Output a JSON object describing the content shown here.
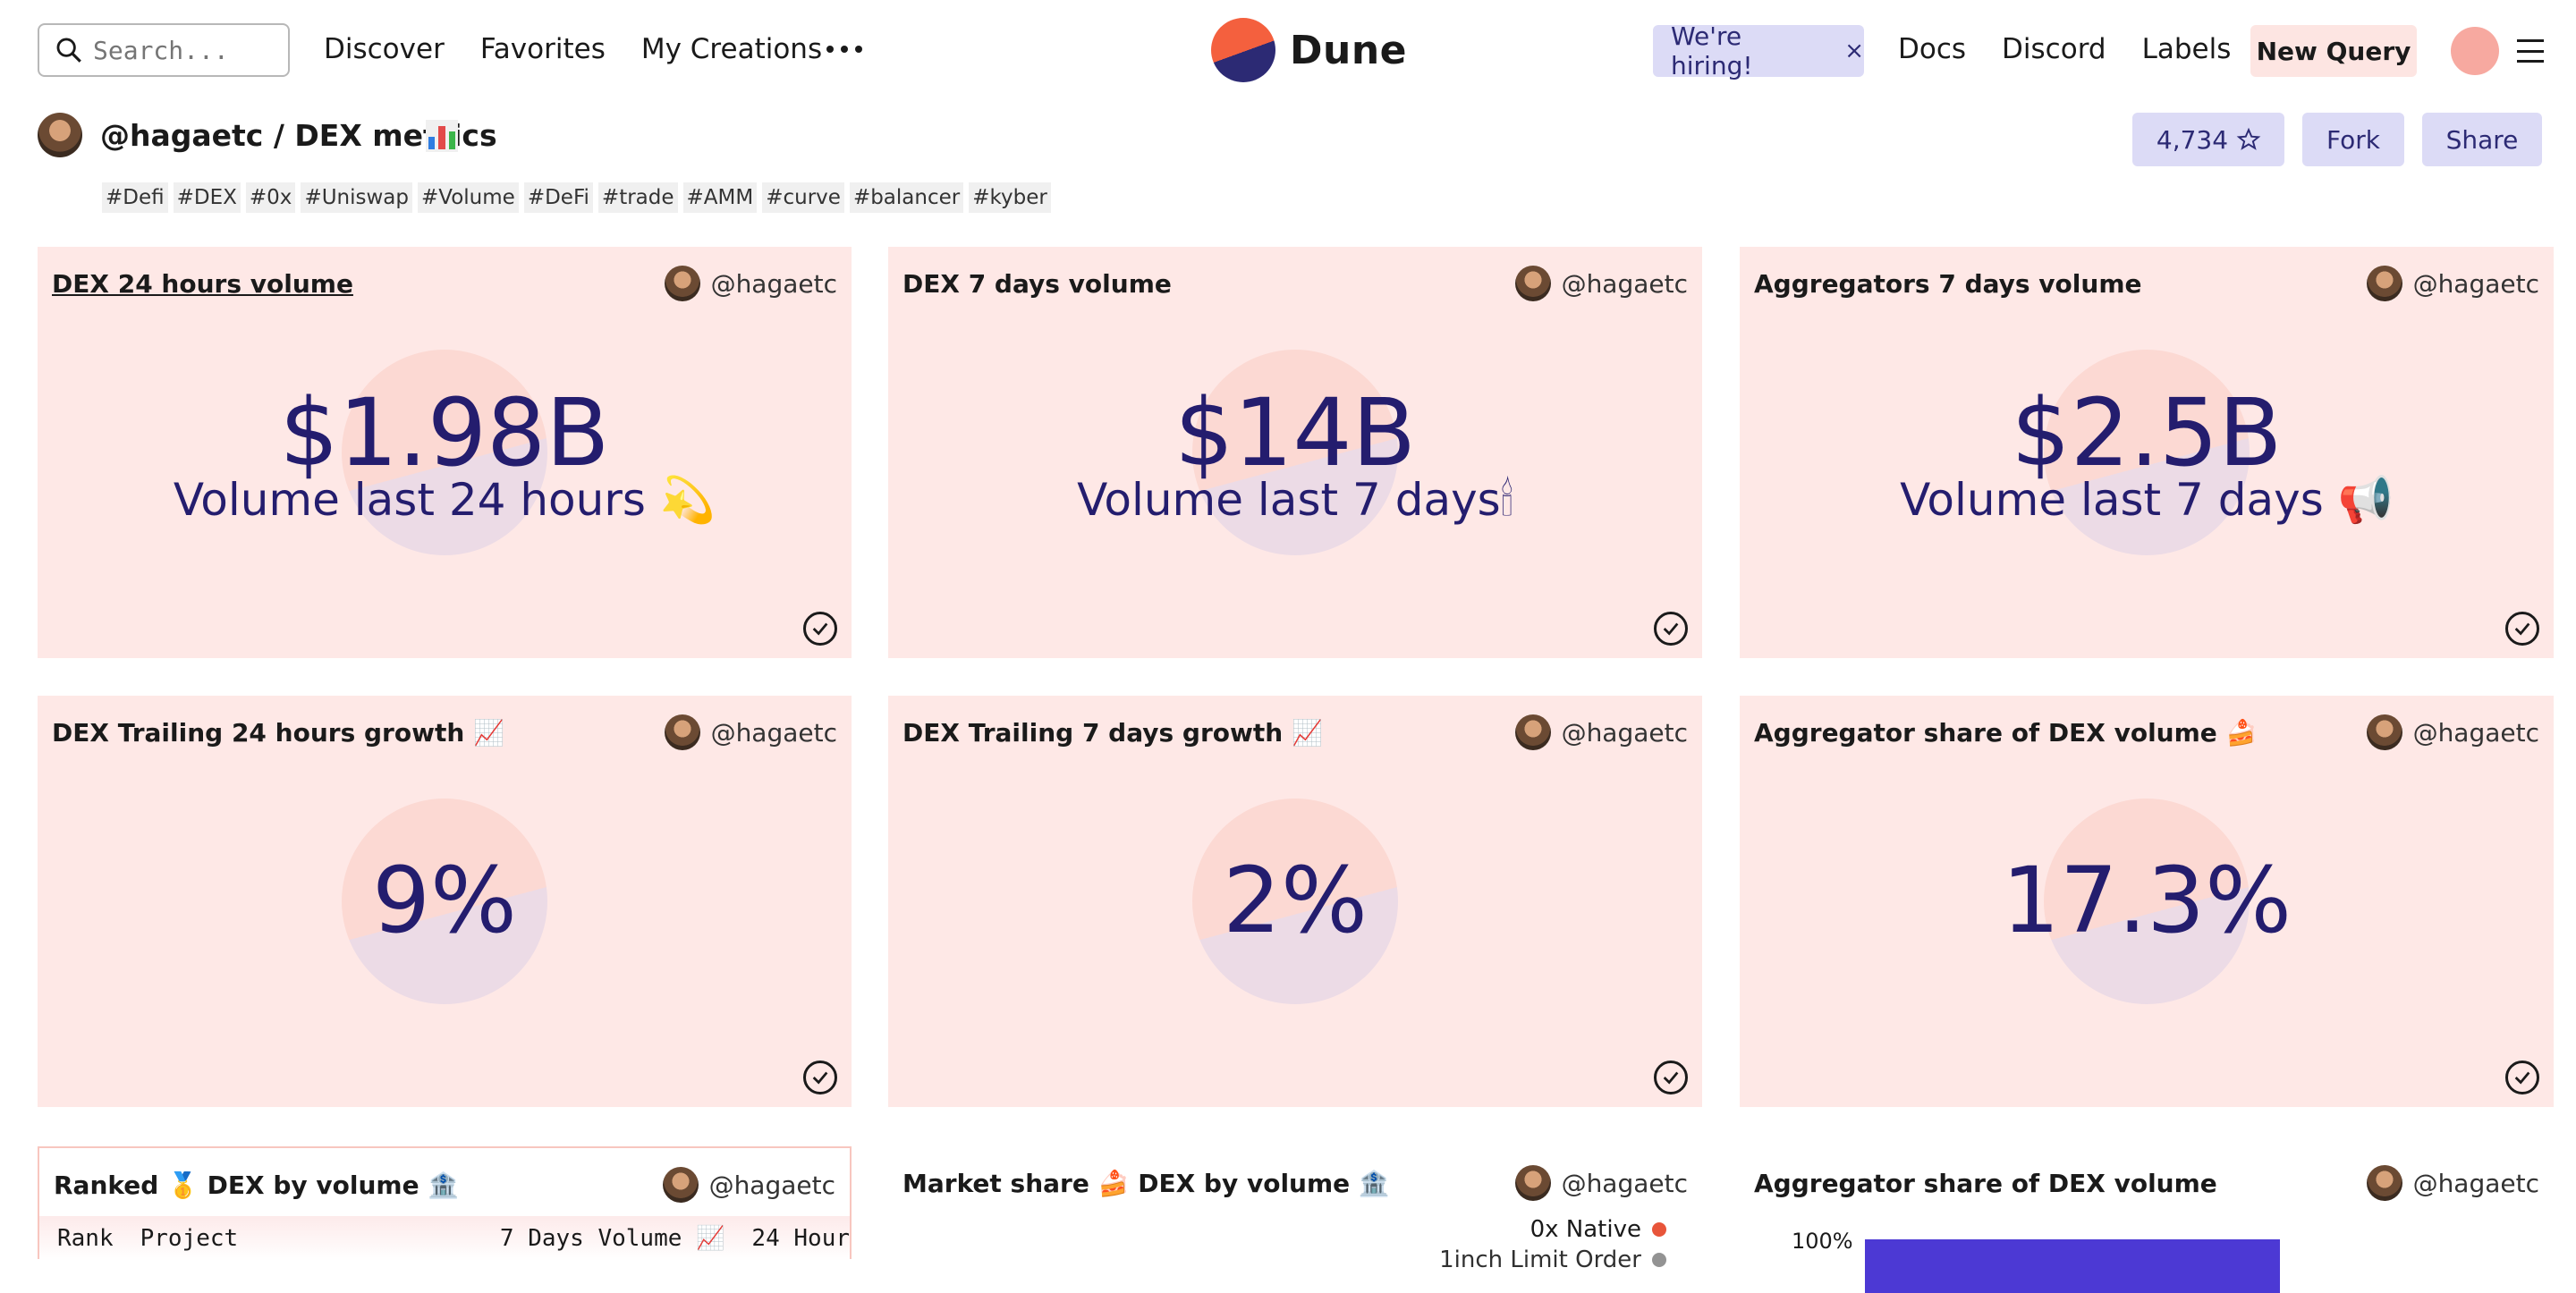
{
  "header": {
    "search_placeholder": "Search...",
    "nav": [
      "Discover",
      "Favorites",
      "My Creations"
    ],
    "logo_text": "Dune",
    "hiring": "We're hiring!",
    "hiring_close": "×",
    "right_nav": [
      "Docs",
      "Discord",
      "Labels"
    ],
    "new_query": "New Query"
  },
  "dashboard": {
    "title": "@hagaetc / DEX metrics",
    "stars": "4,734",
    "fork": "Fork",
    "share": "Share",
    "tags": [
      "#Defi",
      "#DEX",
      "#0x",
      "#Uniswap",
      "#Volume",
      "#DeFi",
      "#trade",
      "#AMM",
      "#curve",
      "#balancer",
      "#kyber"
    ]
  },
  "cards": [
    {
      "title": "DEX 24 hours volume",
      "owner": "@hagaetc",
      "value": "$1.98B",
      "label": "Volume last 24 hours 💫"
    },
    {
      "title": "DEX 7 days volume",
      "owner": "@hagaetc",
      "value": "$14B",
      "label": "Volume last 7 days🕯"
    },
    {
      "title": "Aggregators 7 days volume",
      "owner": "@hagaetc",
      "value": "$2.5B",
      "label": "Volume last 7 days 📢"
    },
    {
      "title": "DEX Trailing 24 hours growth 📈",
      "owner": "@hagaetc",
      "value": "9%"
    },
    {
      "title": "DEX Trailing 7 days growth 📈",
      "owner": "@hagaetc",
      "value": "2%"
    },
    {
      "title": "Aggregator share of DEX volume 🍰",
      "owner": "@hagaetc",
      "value": "17.3%"
    },
    {
      "title": "Ranked 🥇 DEX by volume 🏦",
      "owner": "@hagaetc"
    },
    {
      "title": "Market share 🍰 DEX by volume 🏦",
      "owner": "@hagaetc"
    },
    {
      "title": "Aggregator share of DEX volume",
      "owner": "@hagaetc"
    }
  ],
  "ranked_table": {
    "columns": [
      "Rank",
      "Project",
      "7 Days Volume 📈",
      "24 Hour"
    ]
  },
  "market_share": {
    "legend": [
      "0x Native",
      "1inch Limit Order"
    ],
    "legend_colors": [
      "#e8553a",
      "#888888"
    ]
  },
  "aggregator_chart": {
    "axis_top": "100%",
    "bar_color": "#4c39d4"
  }
}
